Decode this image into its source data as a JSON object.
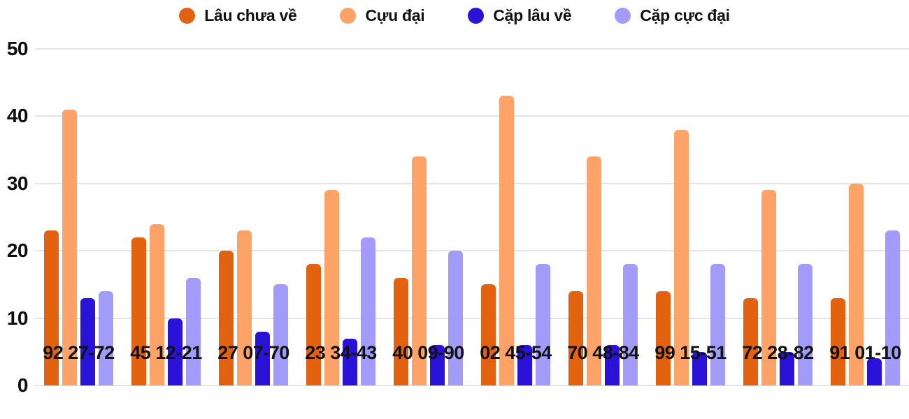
{
  "chart_data": {
    "type": "bar",
    "title": "",
    "xlabel": "",
    "ylabel": "",
    "categories": [
      "92 27-72",
      "45 12-21",
      "27 07-70",
      "23 34-43",
      "40 09-90",
      "02 45-54",
      "70 48-84",
      "99 15-51",
      "72 28-82",
      "91 01-10"
    ],
    "series": [
      {
        "name": "Lâu chưa về",
        "color": "#e2620f",
        "values": [
          23,
          22,
          20,
          18,
          16,
          15,
          14,
          14,
          13,
          13
        ]
      },
      {
        "name": "Cựu đại",
        "color": "#fda368",
        "values": [
          41,
          24,
          23,
          29,
          34,
          43,
          34,
          38,
          29,
          30
        ]
      },
      {
        "name": "Cặp lâu về",
        "color": "#2a12d9",
        "values": [
          13,
          10,
          8,
          7,
          6,
          6,
          6,
          5,
          5,
          4
        ]
      },
      {
        "name": "Cặp cực đại",
        "color": "#a29bf7",
        "values": [
          14,
          16,
          15,
          22,
          20,
          18,
          18,
          18,
          18,
          23
        ]
      }
    ],
    "ylim": [
      0,
      50
    ],
    "y_ticks": [
      0,
      10,
      20,
      30,
      40,
      50
    ],
    "grid": true,
    "legend_position": "top"
  },
  "colors": {
    "grid": "#e4e4e4",
    "text": "#111111",
    "background": "#ffffff"
  }
}
